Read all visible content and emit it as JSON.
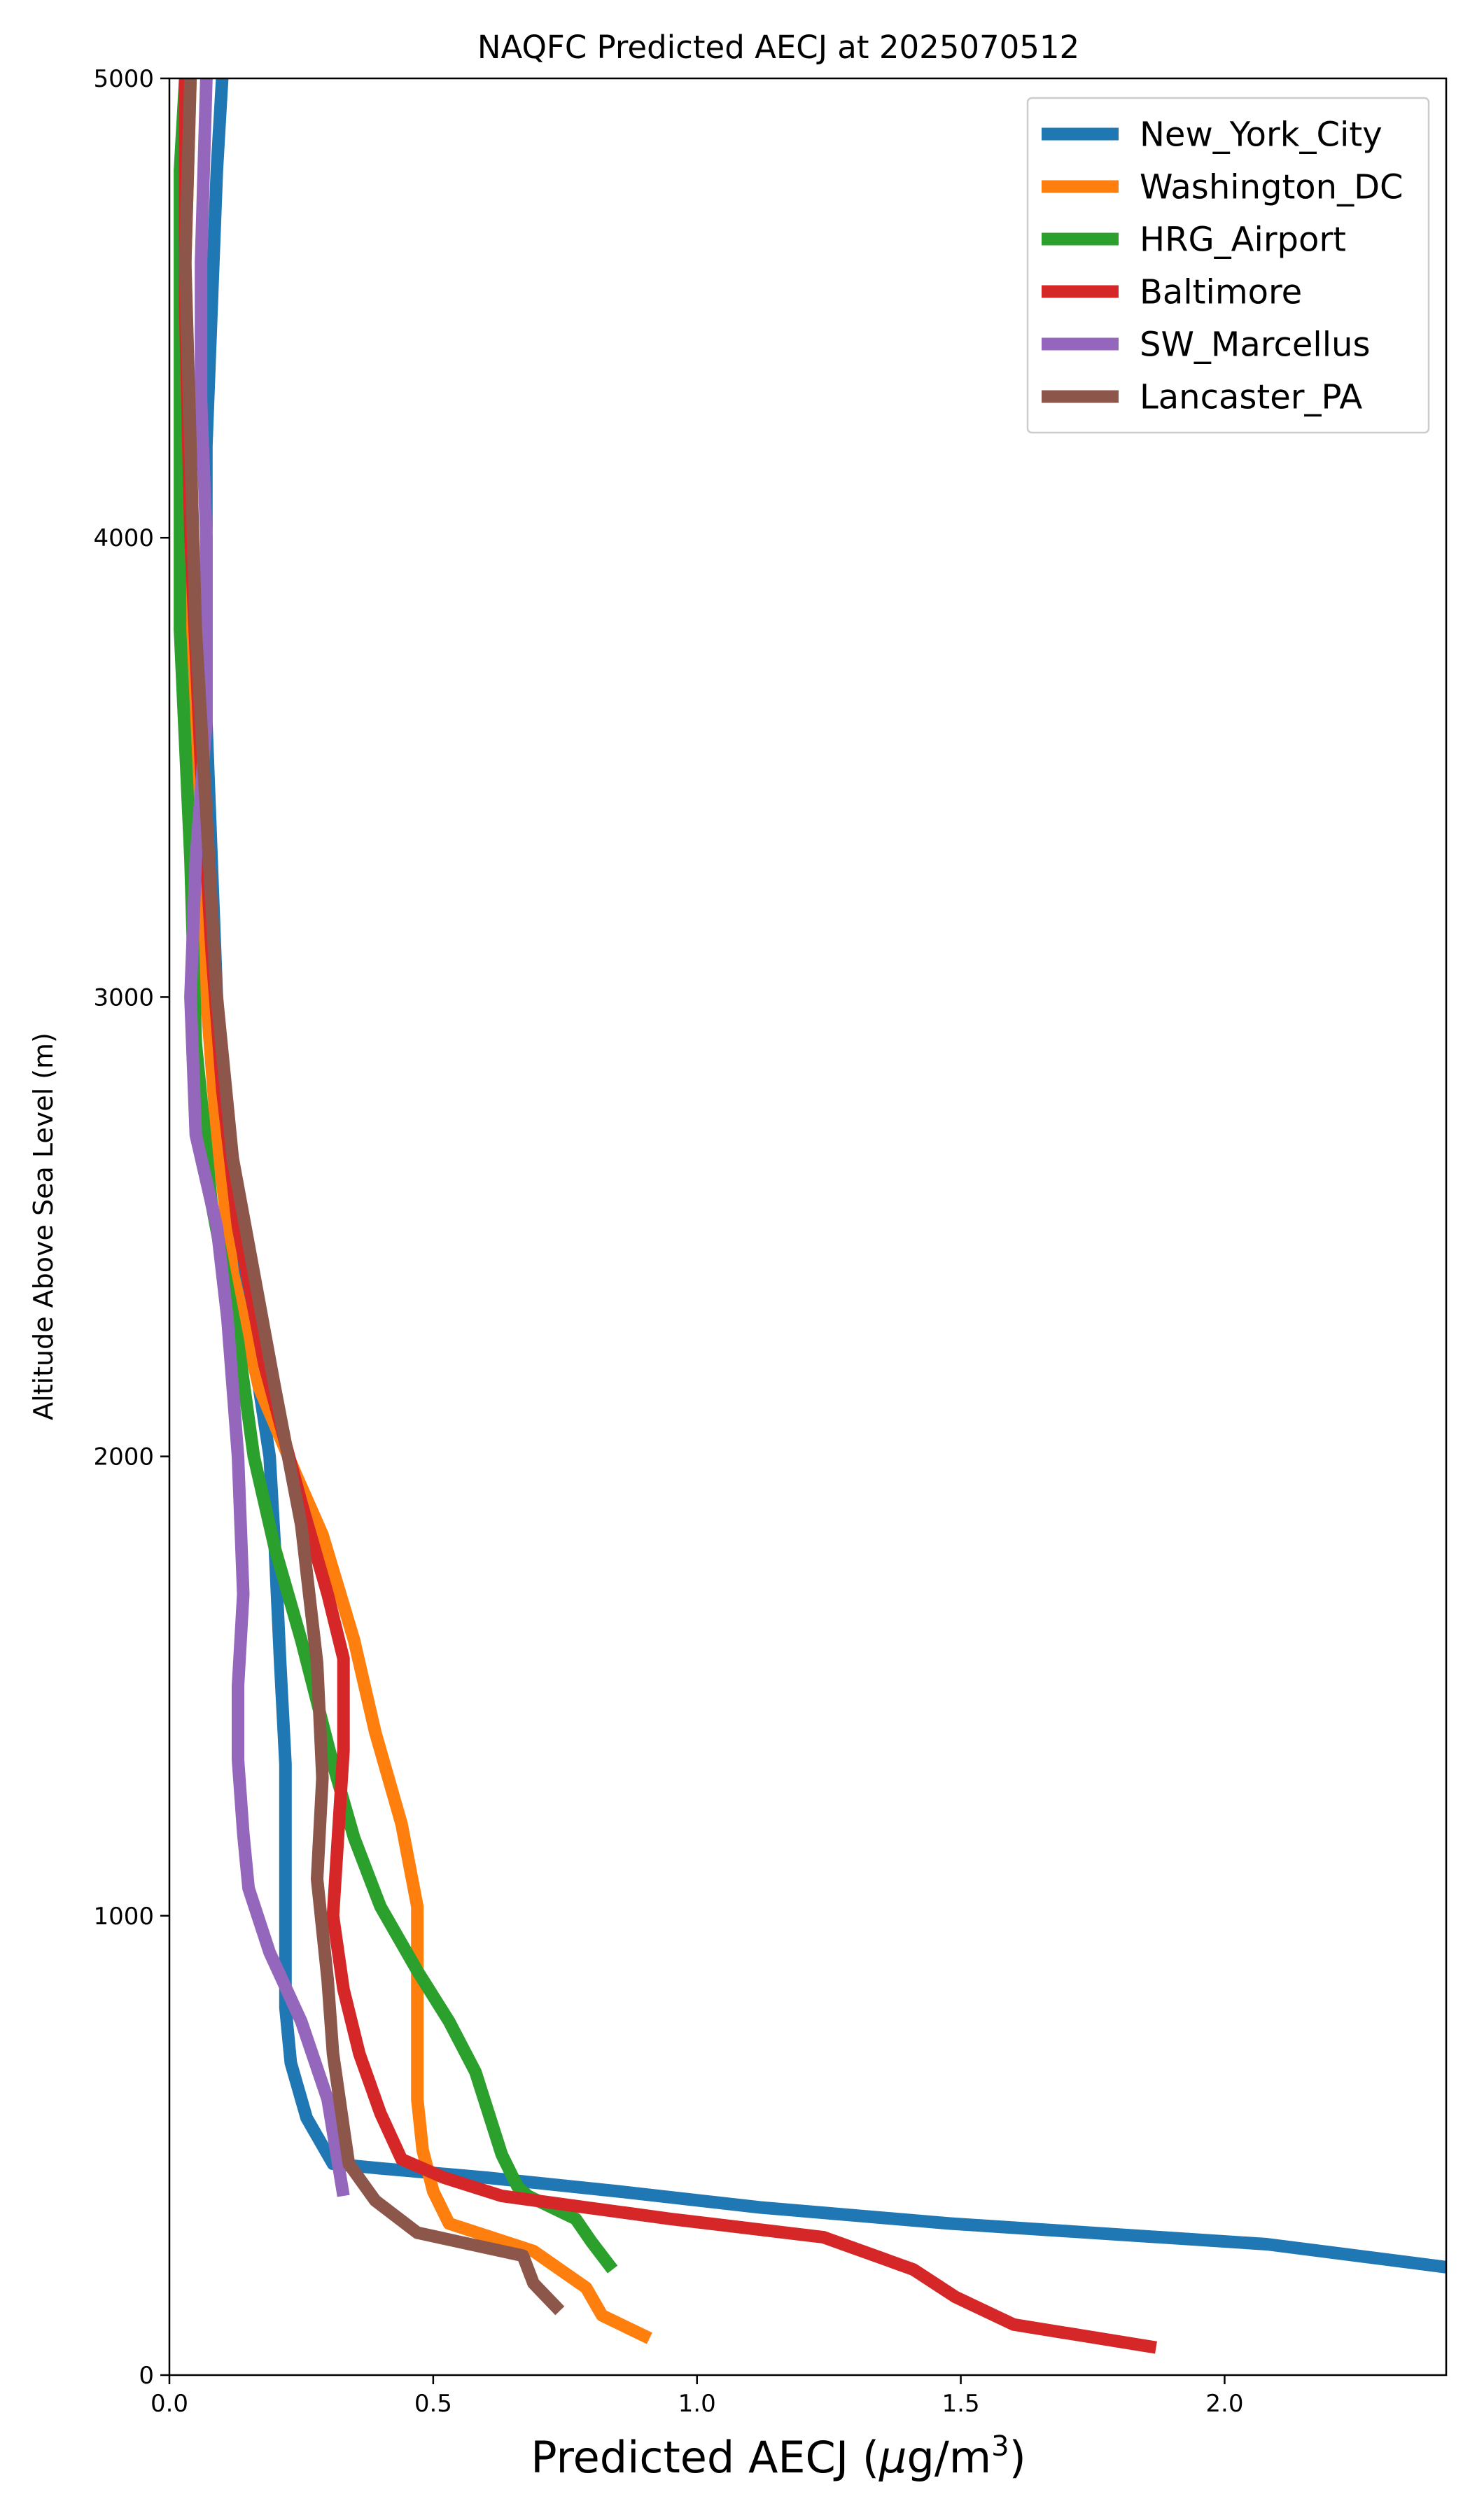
{
  "chart_data": {
    "type": "line",
    "title": "NAQFC Predicted AECJ at 2025070512",
    "xlabel_main": "Predicted AECJ (",
    "xlabel_mu": "μ",
    "xlabel_unit": "g/m",
    "xlabel_exp": "3",
    "xlabel_close": ")",
    "ylabel": "Altitude Above Sea Level (m)",
    "xlim": [
      0,
      2.42
    ],
    "ylim": [
      0,
      5000
    ],
    "xticks": [
      0.0,
      0.5,
      1.0,
      1.5,
      2.0
    ],
    "xtick_labels": [
      "0.0",
      "0.5",
      "1.0",
      "1.5",
      "2.0"
    ],
    "yticks": [
      0,
      1000,
      2000,
      3000,
      4000,
      5000
    ],
    "ytick_labels": [
      "0",
      "1000",
      "2000",
      "3000",
      "4000",
      "5000"
    ],
    "grid": false,
    "legend_position": "top-right",
    "series": [
      {
        "name": "New_York_City",
        "color": "#1f77b4",
        "points": [
          [
            2.42,
            235
          ],
          [
            2.08,
            285
          ],
          [
            1.48,
            330
          ],
          [
            1.12,
            365
          ],
          [
            0.85,
            400
          ],
          [
            0.6,
            430
          ],
          [
            0.4,
            450
          ],
          [
            0.31,
            460
          ],
          [
            0.26,
            560
          ],
          [
            0.23,
            680
          ],
          [
            0.22,
            800
          ],
          [
            0.22,
            1000
          ],
          [
            0.22,
            1330
          ],
          [
            0.21,
            1550
          ],
          [
            0.2,
            1800
          ],
          [
            0.19,
            2000
          ],
          [
            0.17,
            2150
          ],
          [
            0.13,
            2400
          ],
          [
            0.11,
            2700
          ],
          [
            0.09,
            3000
          ],
          [
            0.08,
            3300
          ],
          [
            0.07,
            3600
          ],
          [
            0.07,
            3900
          ],
          [
            0.07,
            4200
          ],
          [
            0.08,
            4500
          ],
          [
            0.09,
            4800
          ],
          [
            0.1,
            5000
          ]
        ]
      },
      {
        "name": "Washington_DC",
        "color": "#ff7f0e",
        "points": [
          [
            0.91,
            80
          ],
          [
            0.82,
            130
          ],
          [
            0.79,
            190
          ],
          [
            0.69,
            270
          ],
          [
            0.53,
            330
          ],
          [
            0.5,
            400
          ],
          [
            0.48,
            490
          ],
          [
            0.47,
            600
          ],
          [
            0.47,
            800
          ],
          [
            0.47,
            1020
          ],
          [
            0.44,
            1200
          ],
          [
            0.39,
            1400
          ],
          [
            0.35,
            1600
          ],
          [
            0.29,
            1830
          ],
          [
            0.24,
            1960
          ],
          [
            0.17,
            2150
          ],
          [
            0.12,
            2400
          ],
          [
            0.09,
            2700
          ],
          [
            0.07,
            3000
          ],
          [
            0.05,
            3400
          ],
          [
            0.04,
            3800
          ],
          [
            0.03,
            4200
          ],
          [
            0.03,
            4600
          ],
          [
            0.04,
            5000
          ]
        ]
      },
      {
        "name": "HRG_Airport",
        "color": "#2ca02c",
        "points": [
          [
            0.84,
            230
          ],
          [
            0.8,
            290
          ],
          [
            0.77,
            340
          ],
          [
            0.68,
            390
          ],
          [
            0.66,
            410
          ],
          [
            0.63,
            480
          ],
          [
            0.58,
            660
          ],
          [
            0.53,
            770
          ],
          [
            0.47,
            880
          ],
          [
            0.4,
            1020
          ],
          [
            0.35,
            1170
          ],
          [
            0.31,
            1330
          ],
          [
            0.25,
            1600
          ],
          [
            0.2,
            1800
          ],
          [
            0.16,
            2000
          ],
          [
            0.13,
            2250
          ],
          [
            0.08,
            2550
          ],
          [
            0.05,
            2900
          ],
          [
            0.04,
            3300
          ],
          [
            0.02,
            3800
          ],
          [
            0.02,
            4300
          ],
          [
            0.02,
            4800
          ],
          [
            0.03,
            5000
          ]
        ]
      },
      {
        "name": "Baltimore",
        "color": "#d62728",
        "points": [
          [
            1.87,
            60
          ],
          [
            1.6,
            110
          ],
          [
            1.49,
            170
          ],
          [
            1.41,
            230
          ],
          [
            1.24,
            300
          ],
          [
            0.95,
            340
          ],
          [
            0.63,
            390
          ],
          [
            0.52,
            430
          ],
          [
            0.44,
            470
          ],
          [
            0.4,
            570
          ],
          [
            0.36,
            700
          ],
          [
            0.33,
            840
          ],
          [
            0.31,
            1000
          ],
          [
            0.32,
            1180
          ],
          [
            0.33,
            1360
          ],
          [
            0.33,
            1560
          ],
          [
            0.3,
            1700
          ],
          [
            0.25,
            1900
          ],
          [
            0.18,
            2200
          ],
          [
            0.13,
            2500
          ],
          [
            0.1,
            2800
          ],
          [
            0.08,
            3100
          ],
          [
            0.06,
            3500
          ],
          [
            0.04,
            4000
          ],
          [
            0.03,
            4500
          ],
          [
            0.03,
            5000
          ]
        ]
      },
      {
        "name": "SW_Marcellus",
        "color": "#9467bd",
        "points": [
          [
            0.33,
            390
          ],
          [
            0.3,
            600
          ],
          [
            0.25,
            770
          ],
          [
            0.19,
            920
          ],
          [
            0.15,
            1060
          ],
          [
            0.14,
            1180
          ],
          [
            0.13,
            1340
          ],
          [
            0.13,
            1500
          ],
          [
            0.14,
            1700
          ],
          [
            0.13,
            2000
          ],
          [
            0.11,
            2300
          ],
          [
            0.09,
            2500
          ],
          [
            0.05,
            2700
          ],
          [
            0.04,
            3000
          ],
          [
            0.05,
            3300
          ],
          [
            0.07,
            3600
          ],
          [
            0.07,
            3700
          ],
          [
            0.07,
            4000
          ],
          [
            0.06,
            4300
          ],
          [
            0.06,
            4600
          ],
          [
            0.07,
            5000
          ]
        ]
      },
      {
        "name": "Lancaster_PA",
        "color": "#8c564b",
        "points": [
          [
            0.74,
            140
          ],
          [
            0.69,
            200
          ],
          [
            0.67,
            260
          ],
          [
            0.47,
            310
          ],
          [
            0.39,
            380
          ],
          [
            0.34,
            460
          ],
          [
            0.33,
            540
          ],
          [
            0.31,
            700
          ],
          [
            0.3,
            860
          ],
          [
            0.28,
            1080
          ],
          [
            0.29,
            1300
          ],
          [
            0.28,
            1550
          ],
          [
            0.25,
            1850
          ],
          [
            0.2,
            2150
          ],
          [
            0.16,
            2400
          ],
          [
            0.12,
            2650
          ],
          [
            0.09,
            3000
          ],
          [
            0.07,
            3400
          ],
          [
            0.05,
            3800
          ],
          [
            0.04,
            4200
          ],
          [
            0.03,
            4600
          ],
          [
            0.04,
            5000
          ]
        ]
      }
    ]
  }
}
